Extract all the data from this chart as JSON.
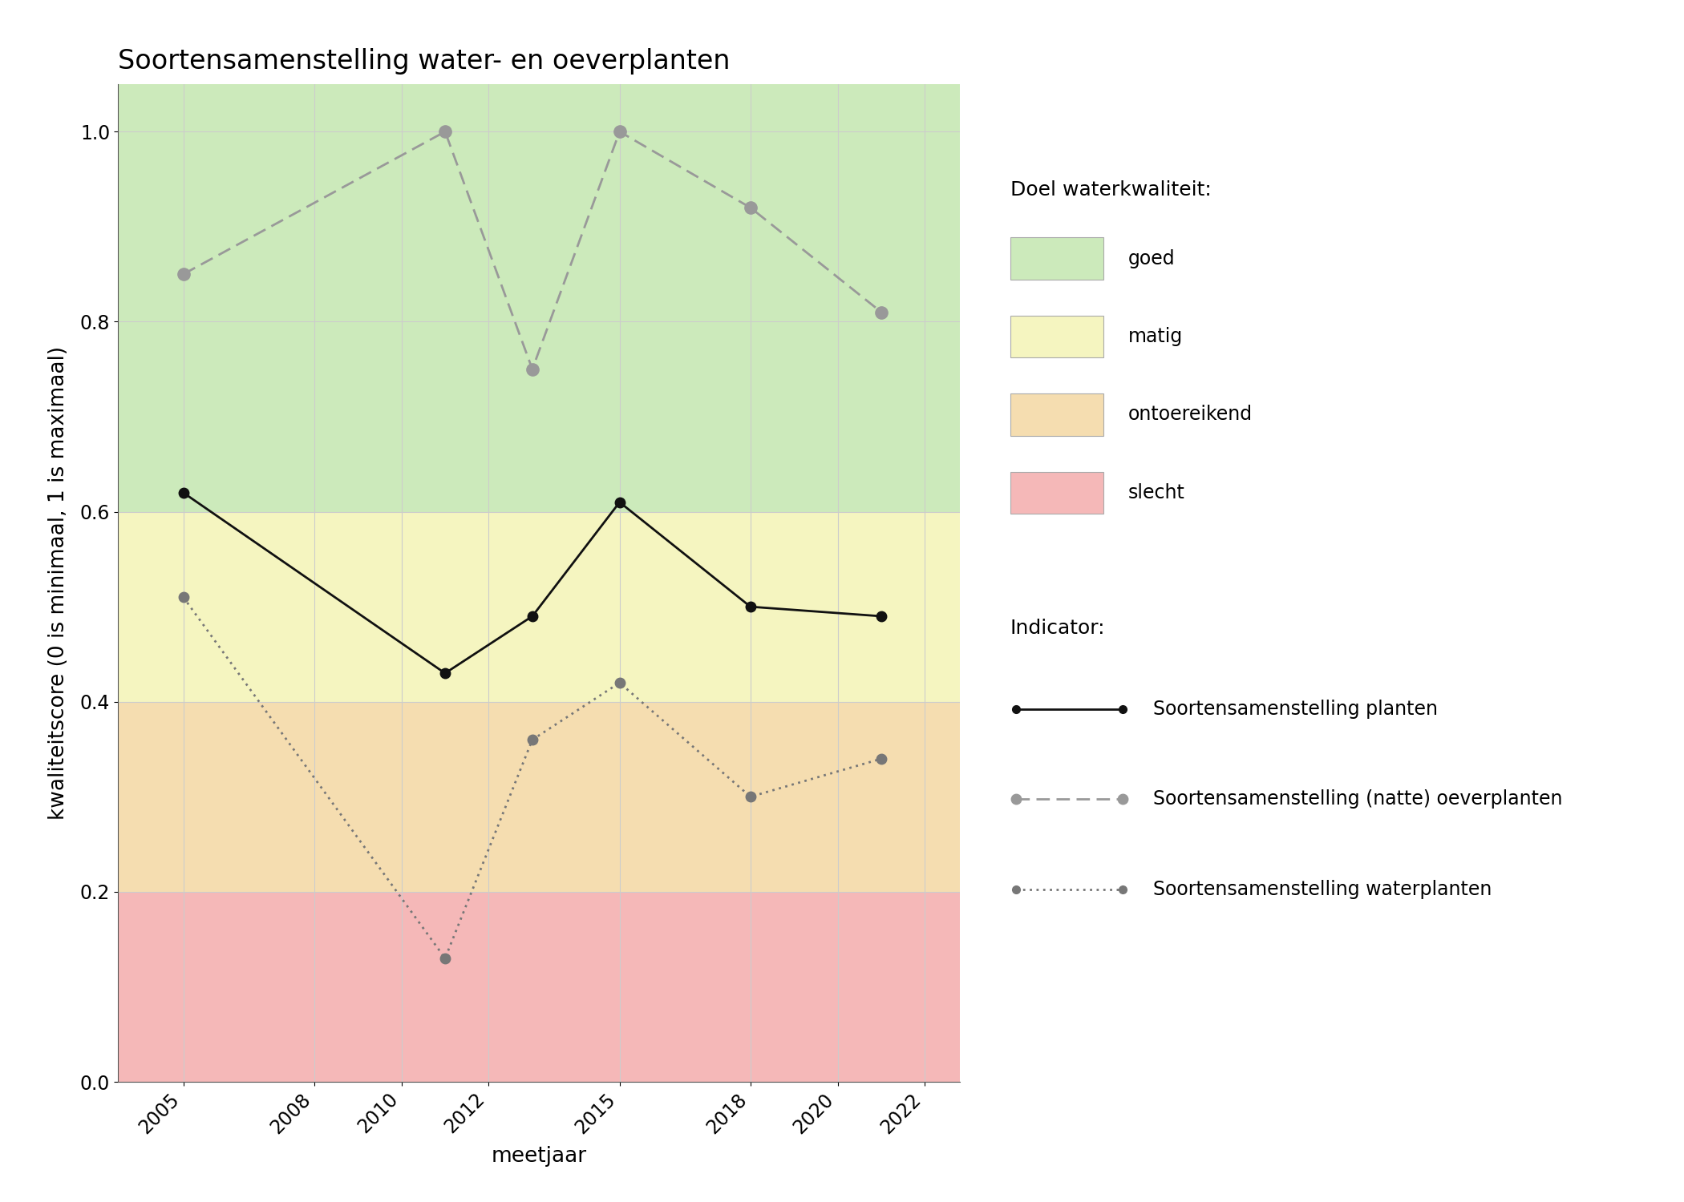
{
  "title": "Soortensamenstelling water- en oeverplanten",
  "xlabel": "meetjaar",
  "ylabel": "kwaliteitscore (0 is minimaal, 1 is maximaal)",
  "xlim": [
    2003.5,
    2022.8
  ],
  "ylim": [
    0.0,
    1.05
  ],
  "xtick_positions": [
    2005,
    2008,
    2010,
    2012,
    2015,
    2018,
    2020,
    2022
  ],
  "xtick_labels": [
    "2005",
    "2008",
    "2010",
    "2012",
    "2015",
    "2018",
    "2020",
    "2022"
  ],
  "yticks": [
    0.0,
    0.2,
    0.4,
    0.6,
    0.8,
    1.0
  ],
  "bg_zones": [
    {
      "ymin": 0.6,
      "ymax": 1.05,
      "color": "#cceabb"
    },
    {
      "ymin": 0.4,
      "ymax": 0.6,
      "color": "#f5f5c0"
    },
    {
      "ymin": 0.2,
      "ymax": 0.4,
      "color": "#f5ddb0"
    },
    {
      "ymin": 0.0,
      "ymax": 0.2,
      "color": "#f5b8b8"
    }
  ],
  "bg_legend_colors": [
    "#cceabb",
    "#f5f5c0",
    "#f5ddb0",
    "#f5b8b8"
  ],
  "bg_legend_labels": [
    "goed",
    "matig",
    "ontoereikend",
    "slecht"
  ],
  "series_planten": {
    "x": [
      2005,
      2011,
      2013,
      2015,
      2018,
      2021
    ],
    "y": [
      0.62,
      0.43,
      0.49,
      0.61,
      0.5,
      0.49
    ],
    "color": "#111111",
    "linewidth": 2.0,
    "markersize": 9,
    "label": "Soortensamenstelling planten"
  },
  "series_oever": {
    "x": [
      2005,
      2011,
      2013,
      2015,
      2018,
      2021
    ],
    "y": [
      0.85,
      1.0,
      0.75,
      1.0,
      0.92,
      0.81
    ],
    "color": "#999999",
    "linewidth": 2.0,
    "markersize": 11,
    "label": "Soortensamenstelling (natte) oeverplanten"
  },
  "series_water": {
    "x": [
      2005,
      2011,
      2013,
      2015,
      2018,
      2021
    ],
    "y": [
      0.51,
      0.13,
      0.36,
      0.42,
      0.3,
      0.34
    ],
    "color": "#777777",
    "linewidth": 2.0,
    "markersize": 9,
    "label": "Soortensamenstelling waterplanten"
  },
  "legend_quality_title": "Doel waterkwaliteit:",
  "legend_indicator_title": "Indicator:",
  "background_color": "#ffffff",
  "grid_color": "#cccccc",
  "title_fontsize": 24,
  "axis_label_fontsize": 19,
  "tick_fontsize": 17,
  "legend_fontsize": 17,
  "legend_title_fontsize": 18
}
